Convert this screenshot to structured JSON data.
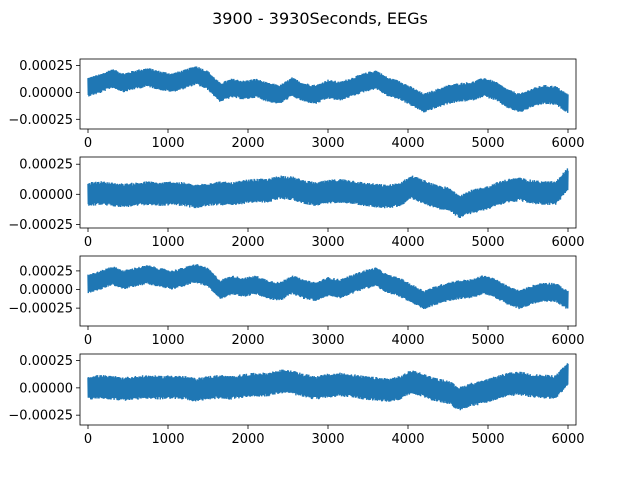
{
  "chart_data": {
    "title": "3900 - 3930Seconds, EEGs",
    "type": "line",
    "color": "#1f77b4",
    "xlim": [
      -100,
      6100
    ],
    "x_ticks": [
      0,
      1000,
      2000,
      3000,
      4000,
      5000,
      6000
    ],
    "panels": [
      {
        "name": "",
        "ylim": [
          -0.00034,
          0.00031
        ],
        "y_ticks": [
          -0.00025,
          0.0,
          0.00025
        ],
        "y_tick_labels": [
          "−0.00025",
          "0.00000",
          "0.00025"
        ],
        "baseline": [
          [
            0,
            5e-05
          ],
          [
            150,
            8e-05
          ],
          [
            300,
            0.00013
          ],
          [
            450,
            9e-05
          ],
          [
            600,
            0.00012
          ],
          [
            750,
            0.00014
          ],
          [
            900,
            0.00011
          ],
          [
            1050,
            9e-05
          ],
          [
            1200,
            0.00012
          ],
          [
            1350,
            0.00016
          ],
          [
            1500,
            0.00011
          ],
          [
            1650,
            0.0
          ],
          [
            1800,
            4e-05
          ],
          [
            1950,
            2e-05
          ],
          [
            2100,
            4e-05
          ],
          [
            2250,
            0.0
          ],
          [
            2400,
            -2e-05
          ],
          [
            2550,
            5e-05
          ],
          [
            2700,
            0.0
          ],
          [
            2850,
            -2e-05
          ],
          [
            3000,
            3e-05
          ],
          [
            3150,
            1e-05
          ],
          [
            3300,
            5e-05
          ],
          [
            3450,
            9e-05
          ],
          [
            3600,
            0.00012
          ],
          [
            3750,
            5e-05
          ],
          [
            3900,
            2e-05
          ],
          [
            4050,
            -4e-05
          ],
          [
            4200,
            -0.0001
          ],
          [
            4350,
            -6e-05
          ],
          [
            4500,
            -2e-05
          ],
          [
            4650,
            0.0
          ],
          [
            4800,
            1e-05
          ],
          [
            4950,
            5e-05
          ],
          [
            5100,
            1e-05
          ],
          [
            5250,
            -6e-05
          ],
          [
            5400,
            -0.0001
          ],
          [
            5550,
            -5e-05
          ],
          [
            5700,
            -2e-05
          ],
          [
            5850,
            -3e-05
          ],
          [
            5990,
            -0.0001
          ]
        ],
        "amplitude": 9e-05
      },
      {
        "name": "",
        "ylim": [
          -0.00028,
          0.00031
        ],
        "y_ticks": [
          -0.00025,
          0.0,
          0.00025
        ],
        "y_tick_labels": [
          "−0.00025",
          "0.00000",
          "0.00025"
        ],
        "baseline": [
          [
            0,
            0.0
          ],
          [
            150,
            1e-05
          ],
          [
            300,
            0.0
          ],
          [
            450,
            -1e-05
          ],
          [
            600,
            0.0
          ],
          [
            750,
            1e-05
          ],
          [
            900,
            0.0
          ],
          [
            1050,
            1e-05
          ],
          [
            1200,
            0.0
          ],
          [
            1350,
            -2e-05
          ],
          [
            1500,
            0.0
          ],
          [
            1650,
            1e-05
          ],
          [
            1800,
            0.0
          ],
          [
            1950,
            2e-05
          ],
          [
            2100,
            3e-05
          ],
          [
            2250,
            3e-05
          ],
          [
            2400,
            6e-05
          ],
          [
            2550,
            5e-05
          ],
          [
            2700,
            2e-05
          ],
          [
            2850,
            0.0
          ],
          [
            3000,
            2e-05
          ],
          [
            3150,
            3e-05
          ],
          [
            3300,
            2e-05
          ],
          [
            3450,
            0.0
          ],
          [
            3600,
            -1e-05
          ],
          [
            3750,
            -2e-05
          ],
          [
            3900,
            0.0
          ],
          [
            4050,
            6e-05
          ],
          [
            4200,
            2e-05
          ],
          [
            4350,
            -2e-05
          ],
          [
            4500,
            -4e-05
          ],
          [
            4650,
            -0.0001
          ],
          [
            4800,
            -6e-05
          ],
          [
            4950,
            -4e-05
          ],
          [
            5100,
            0.0
          ],
          [
            5250,
            3e-05
          ],
          [
            5400,
            4e-05
          ],
          [
            5550,
            2e-05
          ],
          [
            5700,
            1e-05
          ],
          [
            5850,
            1e-05
          ],
          [
            5990,
            0.00012
          ]
        ],
        "amplitude": 0.0001
      },
      {
        "name": "",
        "ylim": [
          -0.00049,
          0.00045
        ],
        "y_ticks": [
          -0.00025,
          0.0,
          0.00025
        ],
        "y_tick_labels": [
          "−0.00025",
          "0.00000",
          "0.00025"
        ],
        "baseline": [
          [
            0,
            8e-05
          ],
          [
            150,
            0.00012
          ],
          [
            300,
            0.00019
          ],
          [
            450,
            0.00013
          ],
          [
            600,
            0.00017
          ],
          [
            750,
            0.0002
          ],
          [
            900,
            0.00016
          ],
          [
            1050,
            0.00013
          ],
          [
            1200,
            0.00017
          ],
          [
            1350,
            0.00022
          ],
          [
            1500,
            0.00016
          ],
          [
            1650,
            0.0
          ],
          [
            1800,
            6e-05
          ],
          [
            1950,
            3e-05
          ],
          [
            2100,
            6e-05
          ],
          [
            2250,
            0.0
          ],
          [
            2400,
            -3e-05
          ],
          [
            2550,
            7e-05
          ],
          [
            2700,
            0.0
          ],
          [
            2850,
            -3e-05
          ],
          [
            3000,
            4e-05
          ],
          [
            3150,
            1e-05
          ],
          [
            3300,
            7e-05
          ],
          [
            3450,
            0.00013
          ],
          [
            3600,
            0.00017
          ],
          [
            3750,
            7e-05
          ],
          [
            3900,
            3e-05
          ],
          [
            4050,
            -6e-05
          ],
          [
            4200,
            -0.00014
          ],
          [
            4350,
            -8e-05
          ],
          [
            4500,
            -3e-05
          ],
          [
            4650,
            0.0
          ],
          [
            4800,
            1e-05
          ],
          [
            4950,
            7e-05
          ],
          [
            5100,
            1e-05
          ],
          [
            5250,
            -8e-05
          ],
          [
            5400,
            -0.00014
          ],
          [
            5550,
            -7e-05
          ],
          [
            5700,
            -3e-05
          ],
          [
            5850,
            -4e-05
          ],
          [
            5990,
            -0.00014
          ]
        ],
        "amplitude": 0.00013
      },
      {
        "name": "",
        "ylim": [
          -0.00034,
          0.00031
        ],
        "y_ticks": [
          -0.00025,
          0.0,
          0.00025
        ],
        "y_tick_labels": [
          "−0.00025",
          "0.00000",
          "0.00025"
        ],
        "baseline": [
          [
            0,
            0.0
          ],
          [
            150,
            1e-05
          ],
          [
            300,
            0.0
          ],
          [
            450,
            -1e-05
          ],
          [
            600,
            0.0
          ],
          [
            750,
            1e-05
          ],
          [
            900,
            0.0
          ],
          [
            1050,
            1e-05
          ],
          [
            1200,
            0.0
          ],
          [
            1350,
            -2e-05
          ],
          [
            1500,
            0.0
          ],
          [
            1650,
            1e-05
          ],
          [
            1800,
            0.0
          ],
          [
            1950,
            2e-05
          ],
          [
            2100,
            3e-05
          ],
          [
            2250,
            3e-05
          ],
          [
            2400,
            6e-05
          ],
          [
            2550,
            5e-05
          ],
          [
            2700,
            2e-05
          ],
          [
            2850,
            0.0
          ],
          [
            3000,
            2e-05
          ],
          [
            3150,
            3e-05
          ],
          [
            3300,
            2e-05
          ],
          [
            3450,
            0.0
          ],
          [
            3600,
            -1e-05
          ],
          [
            3750,
            -2e-05
          ],
          [
            3900,
            0.0
          ],
          [
            4050,
            6e-05
          ],
          [
            4200,
            2e-05
          ],
          [
            4350,
            -2e-05
          ],
          [
            4500,
            -4e-05
          ],
          [
            4650,
            -0.0001
          ],
          [
            4800,
            -6e-05
          ],
          [
            4950,
            -4e-05
          ],
          [
            5100,
            0.0
          ],
          [
            5250,
            3e-05
          ],
          [
            5400,
            4e-05
          ],
          [
            5550,
            2e-05
          ],
          [
            5700,
            1e-05
          ],
          [
            5850,
            1e-05
          ],
          [
            5990,
            0.00012
          ]
        ],
        "amplitude": 0.00011
      }
    ]
  }
}
